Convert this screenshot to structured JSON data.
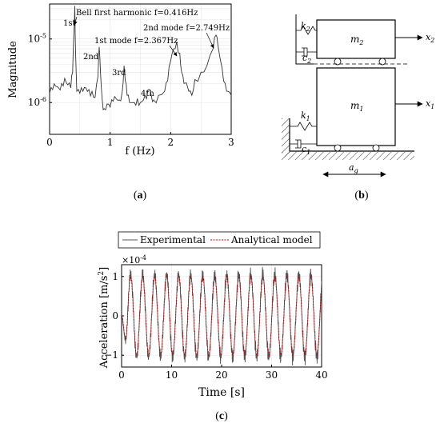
{
  "panel_a": {
    "caption_open": "(",
    "caption_letter": "a",
    "caption_close": ")",
    "chart_data": {
      "type": "line",
      "xlabel": "f (Hz)",
      "ylabel": "Magnitude",
      "xlim": [
        0,
        3
      ],
      "xticks": [
        "0",
        "1",
        "2",
        "3"
      ],
      "yscale": "log",
      "yticks": [
        "10-6",
        "10-5"
      ],
      "grid": true,
      "series": [
        {
          "x": [
            0,
            0.05,
            0.1,
            0.15,
            0.2,
            0.25,
            0.3,
            0.35,
            0.38,
            0.4,
            0.416,
            0.43,
            0.45,
            0.5,
            0.55,
            0.6,
            0.65,
            0.7,
            0.75,
            0.8,
            0.82,
            0.84,
            0.87,
            0.9,
            0.95,
            1.0,
            1.05,
            1.1,
            1.15,
            1.2,
            1.23,
            1.25,
            1.28,
            1.32,
            1.4,
            1.45,
            1.5,
            1.55,
            1.6,
            1.65,
            1.68,
            1.72,
            1.8,
            1.9,
            1.95,
            2.0,
            2.05,
            2.1,
            2.15,
            2.18,
            2.22,
            2.3,
            2.35,
            2.4,
            2.5,
            2.6,
            2.7,
            2.749,
            2.78,
            2.85,
            2.9,
            2.95,
            3.0
          ],
          "y": [
            1.4e-06,
            1.6e-06,
            1.8e-06,
            1.7e-06,
            2e-06,
            2.4e-06,
            1.9e-06,
            1.7e-06,
            3e-06,
            1.2e-05,
            3.3e-05,
            6e-06,
            1.5e-06,
            1.4e-06,
            1.5e-06,
            1.7e-06,
            1.6e-06,
            1.5e-06,
            1.2e-06,
            2.6e-06,
            7.5e-06,
            3e-06,
            1.1e-06,
            8e-07,
            9.5e-07,
            8.5e-07,
            1.05e-06,
            1.15e-06,
            1.1e-06,
            1.5e-06,
            3.8e-06,
            2.2e-06,
            1.3e-06,
            1e-06,
            1e-06,
            1.15e-06,
            1e-06,
            1.1e-06,
            1.15e-06,
            1.6e-06,
            1.3e-06,
            1.1e-06,
            1.3e-06,
            1.5e-06,
            2.2e-06,
            4.5e-06,
            7e-06,
            9e-06,
            6e-06,
            3e-06,
            2e-06,
            1.5e-06,
            1.3e-06,
            2.3e-06,
            3e-06,
            3.8e-06,
            7e-06,
            1.15e-05,
            8e-06,
            3.5e-06,
            2e-06,
            1.5e-06,
            1.3e-06
          ]
        }
      ],
      "annotations": [
        {
          "text": "1st",
          "x": 0.416,
          "y": 3.3e-05
        },
        {
          "text": "2nd",
          "x": 0.82,
          "y": 7.5e-06
        },
        {
          "text": "3rd",
          "x": 1.23,
          "y": 3.8e-06
        },
        {
          "text": "4th",
          "x": 1.65,
          "y": 1.6e-06
        },
        {
          "text": "Bell first harmonic f=0.416Hz"
        },
        {
          "text": "2nd mode f=2.749Hz"
        },
        {
          "text": "1st mode f=2.367Hz"
        }
      ]
    }
  },
  "panel_b": {
    "caption_open": "(",
    "caption_letter": "b",
    "caption_close": ")",
    "labels": {
      "k2": "k",
      "k2_sub": "2",
      "c2": "c",
      "c2_sub": "2",
      "m2": "m",
      "m2_sub": "2",
      "x2": "x",
      "x2_sub": "2",
      "k1": "k",
      "k1_sub": "1",
      "c1": "c",
      "c1_sub": "1",
      "m1": "m",
      "m1_sub": "1",
      "x1": "x",
      "x1_sub": "1",
      "ag": "a",
      "ag_sub": "g"
    }
  },
  "panel_c": {
    "caption_open": "(",
    "caption_letter": "c",
    "caption_close": ")",
    "legend": [
      "Experimental",
      "Analytical model"
    ],
    "colors": {
      "experimental": "#555555",
      "analytical": "#cc0000"
    },
    "chart_data": {
      "type": "line",
      "xlabel": "Time [s]",
      "ylabel": "Acceleration [m/s",
      "ylabel_sup": "2",
      "ylabel_tail": "]",
      "exponent_base": "×10",
      "exponent_power": "-4",
      "xlim": [
        0,
        40
      ],
      "ylim": [
        -1.3,
        1.3
      ],
      "xticks": [
        "0",
        "10",
        "20",
        "30",
        "40"
      ],
      "yticks": [
        "-1",
        "0",
        "1"
      ],
      "grid": true,
      "series": [
        {
          "name": "Experimental",
          "frequency_hz": 0.416,
          "amplitude": 1.05,
          "phase_deg": 180
        },
        {
          "name": "Analytical model",
          "frequency_hz": 0.416,
          "amplitude": 1.0,
          "phase_deg": 180
        }
      ]
    }
  }
}
